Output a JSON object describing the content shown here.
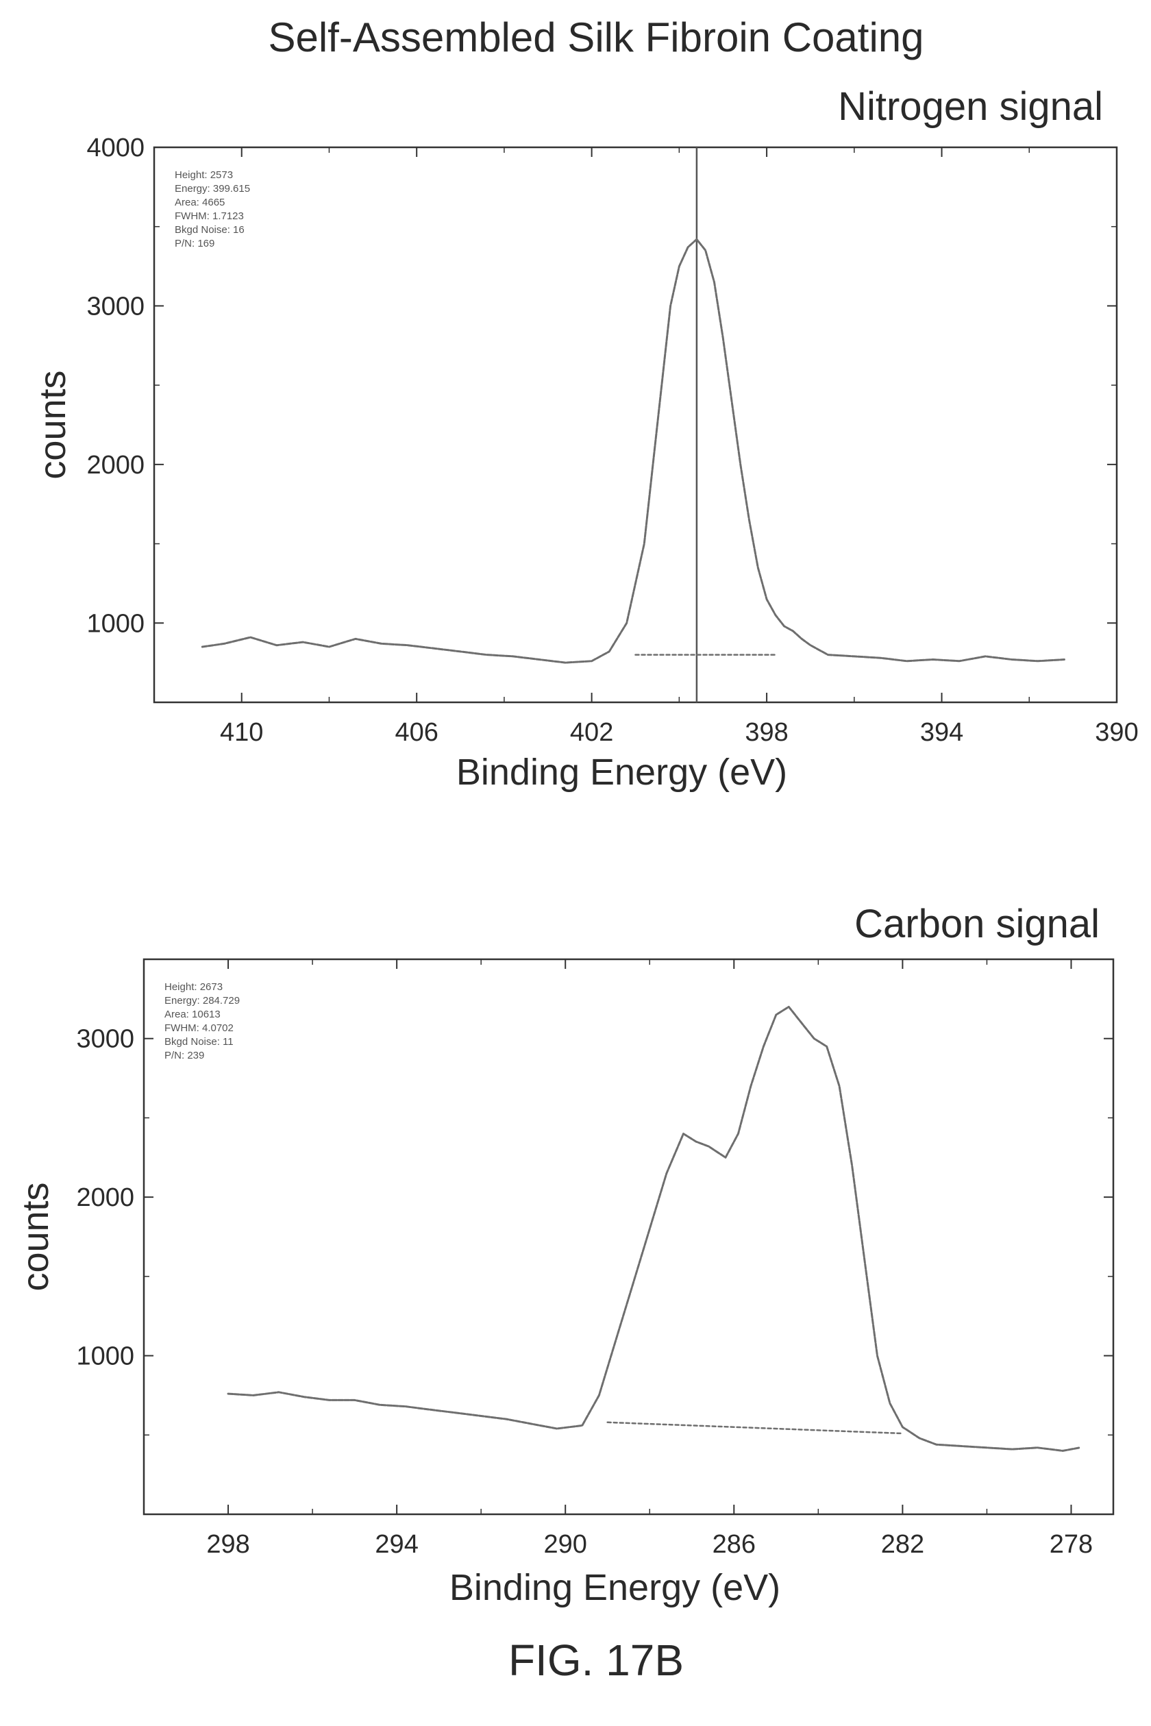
{
  "figure": {
    "title": "Self-Assembled Silk Fibroin Coating",
    "caption": "FIG. 17B"
  },
  "chart_data": [
    {
      "type": "line",
      "title": "Nitrogen signal",
      "xlabel": "Binding Energy (eV)",
      "ylabel": "counts",
      "xlim": [
        412,
        390
      ],
      "ylim": [
        500,
        4000
      ],
      "x_ticks": [
        410,
        406,
        402,
        398,
        394,
        390
      ],
      "y_ticks": [
        1000,
        2000,
        3000,
        4000
      ],
      "grid": false,
      "annotation": [
        "Height: 2573",
        "Energy: 399.615",
        "Area: 4665",
        "FWHM: 1.7123",
        "Bkgd Noise: 16",
        "P/N: 169"
      ],
      "marker_line_x": 399.6,
      "series": [
        {
          "role": "spectrum",
          "x": [
            410.9,
            410.4,
            409.8,
            409.2,
            408.6,
            408.0,
            407.4,
            406.8,
            406.2,
            405.6,
            405.0,
            404.4,
            403.8,
            403.2,
            402.6,
            402.0,
            401.6,
            401.2,
            400.8,
            400.6,
            400.4,
            400.2,
            400.0,
            399.8,
            399.6,
            399.4,
            399.2,
            399.0,
            398.8,
            398.6,
            398.4,
            398.2,
            398.0,
            397.8,
            397.6,
            397.4,
            397.2,
            397.0,
            396.6,
            396.0,
            395.4,
            394.8,
            394.2,
            393.6,
            393.0,
            392.4,
            391.8,
            391.2
          ],
          "y": [
            850,
            870,
            910,
            860,
            880,
            850,
            900,
            870,
            860,
            840,
            820,
            800,
            790,
            770,
            750,
            760,
            820,
            1000,
            1500,
            2000,
            2500,
            3000,
            3250,
            3370,
            3420,
            3350,
            3150,
            2800,
            2400,
            2000,
            1650,
            1350,
            1150,
            1050,
            980,
            950,
            900,
            860,
            800,
            790,
            780,
            760,
            770,
            760,
            790,
            770,
            760,
            770
          ]
        },
        {
          "role": "baseline",
          "x": [
            401.0,
            399.6,
            399.6,
            397.8
          ],
          "y": [
            800,
            800,
            800,
            800
          ]
        }
      ]
    },
    {
      "type": "line",
      "title": "Carbon signal",
      "xlabel": "Binding Energy (eV)",
      "ylabel": "counts",
      "xlim": [
        300,
        277
      ],
      "ylim": [
        0,
        3500
      ],
      "x_ticks": [
        298,
        294,
        290,
        286,
        282,
        278
      ],
      "y_ticks": [
        1000,
        2000,
        3000
      ],
      "grid": false,
      "annotation": [
        "Height: 2673",
        "Energy: 284.729",
        "Area: 10613",
        "FWHM: 4.0702",
        "Bkgd Noise: 11",
        "P/N: 239"
      ],
      "marker_line_x": null,
      "series": [
        {
          "role": "spectrum",
          "x": [
            298.0,
            297.4,
            296.8,
            296.2,
            295.6,
            295.0,
            294.4,
            293.8,
            293.2,
            292.6,
            292.0,
            291.4,
            290.8,
            290.2,
            289.6,
            289.2,
            288.8,
            288.4,
            288.0,
            287.6,
            287.2,
            286.9,
            286.6,
            286.2,
            285.9,
            285.6,
            285.3,
            285.0,
            284.7,
            284.4,
            284.1,
            283.8,
            283.5,
            283.2,
            282.9,
            282.6,
            282.3,
            282.0,
            281.6,
            281.2,
            280.6,
            280.0,
            279.4,
            278.8,
            278.2,
            277.8
          ],
          "y": [
            760,
            750,
            770,
            740,
            720,
            720,
            690,
            680,
            660,
            640,
            620,
            600,
            570,
            540,
            560,
            750,
            1100,
            1450,
            1800,
            2150,
            2400,
            2350,
            2320,
            2250,
            2400,
            2700,
            2950,
            3150,
            3200,
            3100,
            3000,
            2950,
            2700,
            2200,
            1600,
            1000,
            700,
            550,
            480,
            440,
            430,
            420,
            410,
            420,
            400,
            420
          ]
        },
        {
          "role": "baseline",
          "x": [
            289.0,
            286.0,
            283.0,
            282.0
          ],
          "y": [
            580,
            550,
            520,
            510
          ]
        }
      ]
    }
  ]
}
